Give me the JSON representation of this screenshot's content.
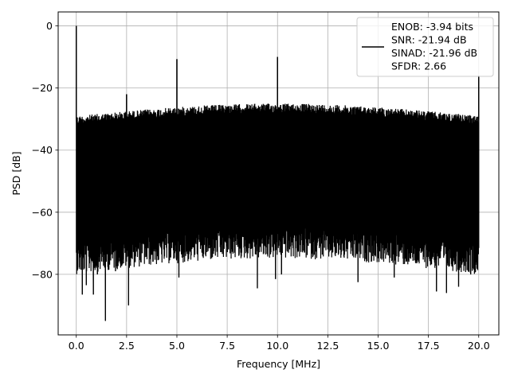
{
  "chart_data": {
    "type": "line",
    "title": "",
    "xlabel": "Frequency [MHz]",
    "ylabel": "PSD [dB]",
    "xlim": [
      -0.9,
      21.0
    ],
    "ylim": [
      -99.5,
      4.5
    ],
    "xticks": [
      0.0,
      2.5,
      5.0,
      7.5,
      10.0,
      12.5,
      15.0,
      17.5,
      20.0
    ],
    "xtick_labels": [
      "0.0",
      "2.5",
      "5.0",
      "7.5",
      "10.0",
      "12.5",
      "15.0",
      "17.5",
      "20.0"
    ],
    "yticks": [
      0,
      -20,
      -40,
      -60,
      -80
    ],
    "ytick_labels": [
      "0",
      "−20",
      "−40",
      "−60",
      "−80"
    ],
    "grid": true,
    "legend_position": "upper-right",
    "series": [
      {
        "legend_label_lines": [
          "ENOB: -3.94 bits",
          "SNR: -21.94 dB",
          "SINAD: -21.96 dB",
          "SFDR: 2.66"
        ],
        "color": "#000000",
        "noise_floor": {
          "x_range": [
            0.0,
            20.0
          ],
          "upper_envelope_db": [
            -29,
            -25
          ],
          "lower_envelope_db": [
            -70,
            -60
          ],
          "deepest_nulls_db": [
            -95,
            -81
          ]
        },
        "spikes": [
          {
            "x": 0.0,
            "y": 0.0
          },
          {
            "x": 2.5,
            "y": -22.0
          },
          {
            "x": 5.0,
            "y": -10.7
          },
          {
            "x": 10.0,
            "y": -10.0
          },
          {
            "x": 20.0,
            "y": -16.0
          }
        ],
        "notable_nulls": [
          {
            "x": 0.3,
            "y": -86.5
          },
          {
            "x": 0.5,
            "y": -83.5
          },
          {
            "x": 0.85,
            "y": -86.5
          },
          {
            "x": 1.05,
            "y": -80.0
          },
          {
            "x": 1.45,
            "y": -95.0
          },
          {
            "x": 1.95,
            "y": -79.0
          },
          {
            "x": 2.6,
            "y": -90.0
          },
          {
            "x": 5.1,
            "y": -81.0
          },
          {
            "x": 9.0,
            "y": -84.5
          },
          {
            "x": 9.9,
            "y": -81.5
          },
          {
            "x": 10.2,
            "y": -80.0
          },
          {
            "x": 14.0,
            "y": -82.5
          },
          {
            "x": 15.8,
            "y": -81.0
          },
          {
            "x": 17.9,
            "y": -85.5
          },
          {
            "x": 18.4,
            "y": -86.0
          },
          {
            "x": 19.0,
            "y": -84.0
          },
          {
            "x": 19.6,
            "y": -80.0
          }
        ]
      }
    ]
  }
}
